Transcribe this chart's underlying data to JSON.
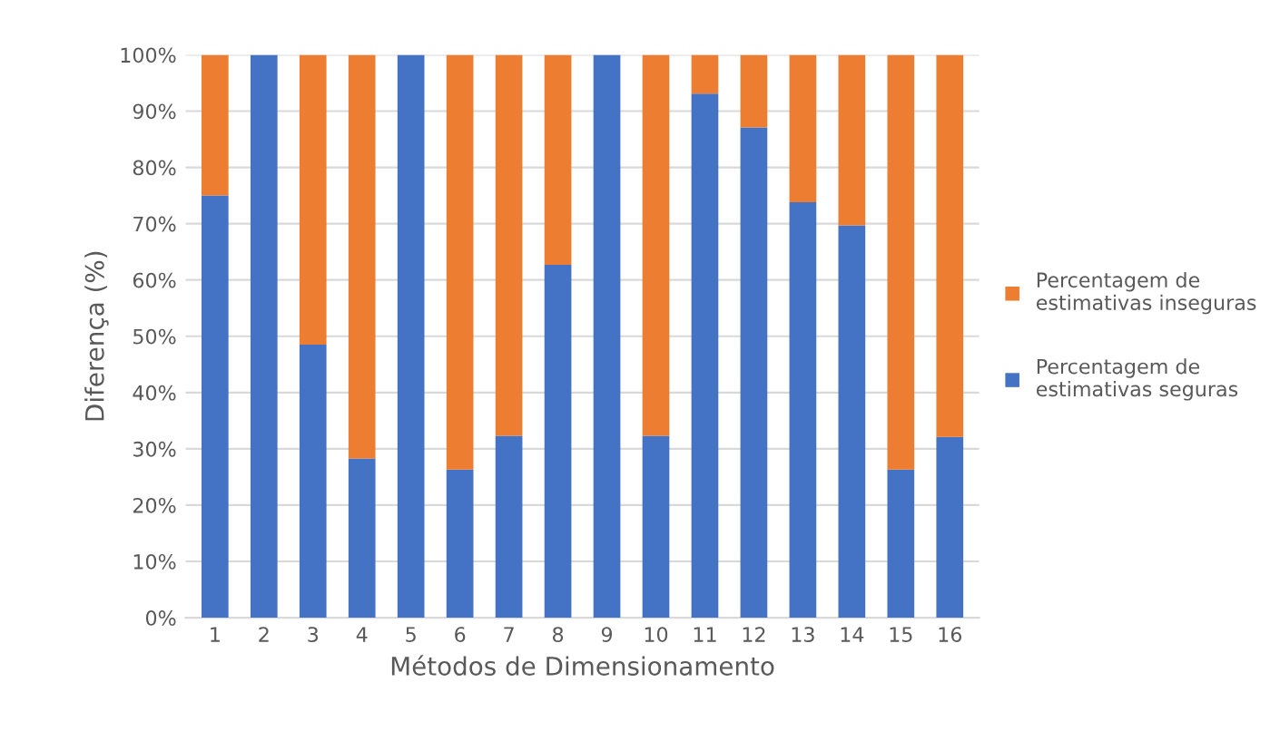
{
  "chart_data": {
    "type": "bar",
    "stacked": true,
    "xlabel": "Métodos de Dimensionamento",
    "ylabel": "Diferença (%)",
    "categories": [
      "1",
      "2",
      "3",
      "4",
      "5",
      "6",
      "7",
      "8",
      "9",
      "10",
      "11",
      "12",
      "13",
      "14",
      "15",
      "16"
    ],
    "series": [
      {
        "name": "Percentagem de\nestimativas seguras",
        "color": "#4472c4",
        "values": [
          75,
          100,
          48.5,
          28.3,
          100,
          26.3,
          32.3,
          62.7,
          100,
          32.3,
          93.1,
          87.1,
          73.8,
          69.7,
          26.3,
          32.1
        ]
      },
      {
        "name": "Percentagem de\nestimativas inseguras",
        "color": "#ed7d31",
        "values": [
          25,
          0,
          51.5,
          71.7,
          0,
          73.7,
          67.7,
          37.3,
          0,
          67.7,
          6.9,
          12.9,
          26.2,
          30.3,
          73.7,
          67.9
        ]
      }
    ],
    "ylim": [
      0,
      100
    ],
    "yticks": [
      {
        "value": 0,
        "label": "0%"
      },
      {
        "value": 10,
        "label": "10%"
      },
      {
        "value": 20,
        "label": "20%"
      },
      {
        "value": 30,
        "label": "30%"
      },
      {
        "value": 40,
        "label": "40%"
      },
      {
        "value": 50,
        "label": "50%"
      },
      {
        "value": 60,
        "label": "60%"
      },
      {
        "value": 70,
        "label": "70%"
      },
      {
        "value": 80,
        "label": "80%"
      },
      {
        "value": 90,
        "label": "90%"
      },
      {
        "value": 100,
        "label": "100%"
      }
    ],
    "grid": "y",
    "legend": "right"
  }
}
